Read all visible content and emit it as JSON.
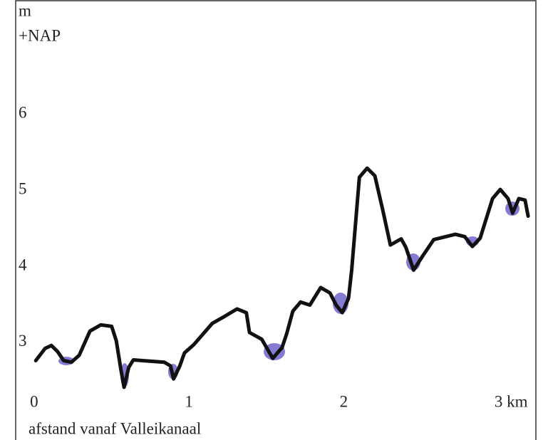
{
  "chart_data": {
    "type": "line",
    "ylabel_lines": [
      "m",
      "+NAP"
    ],
    "xlabel": "afstand vanaf Valleikanaal",
    "xlim": [
      -0.12,
      3.24
    ],
    "ylim": [
      2.4,
      7.5
    ],
    "xticks": [
      0,
      1,
      2,
      {
        "value": 3,
        "label": "3 km"
      }
    ],
    "yticks": [
      3,
      4,
      5,
      6
    ],
    "color": "#111111",
    "x": [
      0.01,
      0.07,
      0.11,
      0.15,
      0.19,
      0.24,
      0.29,
      0.36,
      0.43,
      0.5,
      0.53,
      0.56,
      0.58,
      0.61,
      0.64,
      0.7,
      0.84,
      0.88,
      0.9,
      0.94,
      0.97,
      1.03,
      1.15,
      1.22,
      1.31,
      1.37,
      1.39,
      1.47,
      1.54,
      1.6,
      1.63,
      1.67,
      1.72,
      1.78,
      1.85,
      1.91,
      1.95,
      1.99,
      2.03,
      2.05,
      2.1,
      2.15,
      2.2,
      2.25,
      2.3,
      2.37,
      2.4,
      2.45,
      2.51,
      2.58,
      2.72,
      2.78,
      2.83,
      2.88,
      2.96,
      3.01,
      3.06,
      3.09,
      3.13,
      3.17,
      3.19
    ],
    "values": [
      2.76,
      2.92,
      2.96,
      2.88,
      2.76,
      2.74,
      2.83,
      3.15,
      3.23,
      3.21,
      3.02,
      2.64,
      2.41,
      2.67,
      2.77,
      2.76,
      2.74,
      2.69,
      2.52,
      2.69,
      2.86,
      2.97,
      3.25,
      3.33,
      3.44,
      3.39,
      3.13,
      3.04,
      2.79,
      2.93,
      3.11,
      3.41,
      3.53,
      3.49,
      3.72,
      3.65,
      3.49,
      3.39,
      3.58,
      3.95,
      5.17,
      5.29,
      5.19,
      4.75,
      4.28,
      4.36,
      4.25,
      3.95,
      4.14,
      4.35,
      4.42,
      4.39,
      4.26,
      4.37,
      4.89,
      5.01,
      4.89,
      4.7,
      4.89,
      4.87,
      4.66
    ]
  }
}
